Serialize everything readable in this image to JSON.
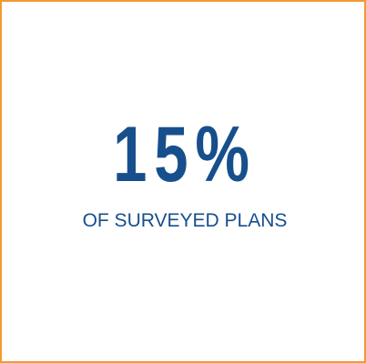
{
  "card": {
    "stat_value": "15%",
    "caption": "OF SURVEYED PLANS"
  },
  "colors": {
    "border": "#f39a35",
    "text": "#164f8c",
    "background": "#ffffff"
  }
}
